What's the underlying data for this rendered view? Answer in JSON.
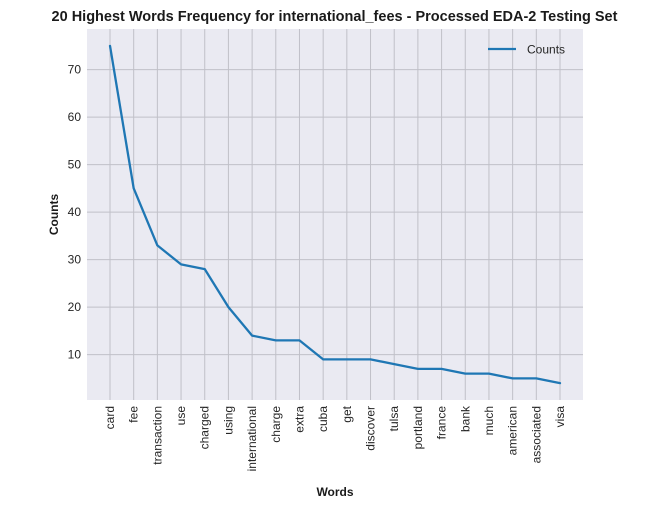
{
  "chart_data": {
    "type": "line",
    "title": "20 Highest Words Frequency for international_fees - Processed EDA-2 Testing Set",
    "xlabel": "Words",
    "ylabel": "Counts",
    "categories": [
      "card",
      "fee",
      "transaction",
      "use",
      "charged",
      "using",
      "international",
      "charge",
      "extra",
      "cuba",
      "get",
      "discover",
      "tulsa",
      "portland",
      "france",
      "bank",
      "much",
      "american",
      "associated",
      "visa"
    ],
    "series": [
      {
        "name": "Counts",
        "values": [
          75,
          45,
          33,
          29,
          28,
          20,
          14,
          13,
          13,
          9,
          9,
          9,
          8,
          7,
          7,
          6,
          6,
          5,
          5,
          4
        ]
      }
    ],
    "ylim": [
      0.45,
      78.55
    ],
    "yticks": [
      10,
      20,
      30,
      40,
      50,
      60,
      70
    ],
    "grid": true,
    "legend_position": "top-right",
    "colors": {
      "line": "#1f77b4",
      "background": "#eaeaf2",
      "grid": "#c0c0c8"
    }
  }
}
